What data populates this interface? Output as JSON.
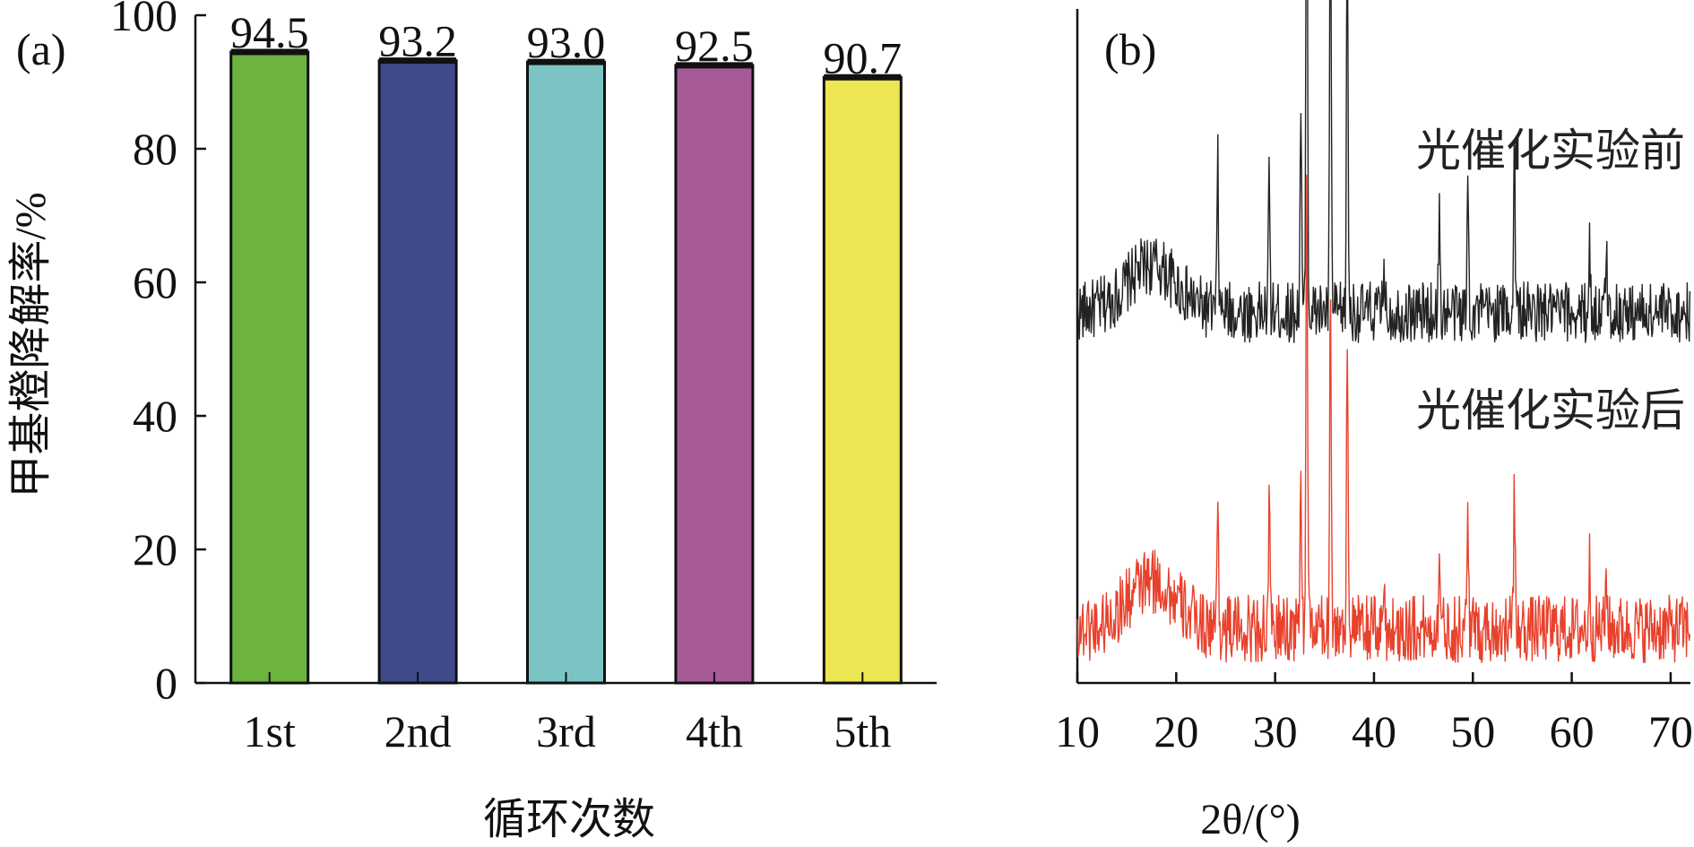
{
  "chart_data": [
    {
      "panel": "(a)",
      "type": "bar",
      "categories": [
        "1st",
        "2nd",
        "3rd",
        "4th",
        "5th"
      ],
      "values": [
        94.5,
        93.2,
        93.0,
        92.5,
        90.7
      ],
      "value_labels": [
        "94.5",
        "93.2",
        "93.0",
        "92.5",
        "90.7"
      ],
      "colors": [
        "#6db33f",
        "#3f4a8a",
        "#7cc4c4",
        "#a65a96",
        "#ebe651"
      ],
      "xlabel": "循环次数",
      "ylabel": "甲基橙降解率/%",
      "ylim": [
        0,
        100
      ],
      "yticks": [
        "0",
        "20",
        "40",
        "60",
        "80",
        "100"
      ],
      "grid": false
    },
    {
      "panel": "(b)",
      "type": "line",
      "xlabel": "2θ/(°)",
      "xlim": [
        10,
        72
      ],
      "xticks": [
        "10",
        "20",
        "30",
        "40",
        "50",
        "60",
        "70"
      ],
      "y_axis_ticks_shown": false,
      "grid": false,
      "peaks_2theta": [
        24.2,
        29.4,
        32.6,
        33.2,
        35.6,
        37.3,
        41.0,
        46.6,
        49.5,
        54.2,
        61.8,
        63.5
      ],
      "series": [
        {
          "name": "光催化实验前",
          "color": "#222222",
          "baseline": 0.55,
          "noise": 0.045,
          "hump_center": 17.5,
          "hump_width": 3.5,
          "hump_height": 0.07,
          "peak_heights": [
            0.22,
            0.2,
            0.3,
            0.83,
            0.7,
            0.58,
            0.08,
            0.14,
            0.2,
            0.25,
            0.1,
            0.1
          ]
        },
        {
          "name": "光催化实验后",
          "color": "#e8412c",
          "baseline": 0.08,
          "noise": 0.05,
          "hump_center": 17.5,
          "hump_width": 3.5,
          "hump_height": 0.07,
          "peak_heights": [
            0.2,
            0.17,
            0.25,
            0.7,
            0.55,
            0.45,
            0.07,
            0.12,
            0.17,
            0.2,
            0.1,
            0.09
          ]
        }
      ]
    }
  ]
}
